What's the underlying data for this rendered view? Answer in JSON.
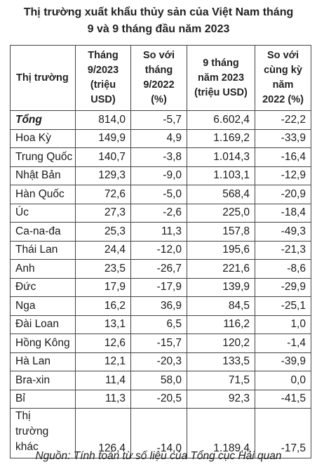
{
  "title": {
    "line1": "Thị trường xuất khẩu thủy sản của Việt Nam tháng",
    "line2": "9 và 9 tháng đầu năm 2023"
  },
  "table": {
    "headers": [
      "Thị trường",
      "Tháng 9/2023 (triệu USD)",
      "So với tháng 9/2022 (%)",
      "9 tháng năm 2023 (triệu USD)",
      "So với cùng kỳ năm 2022 (%)"
    ],
    "rows": [
      {
        "market": "Tổng",
        "sep2023": "814,0",
        "vs_sep2022": "-5,7",
        "nine_months": "6.602,4",
        "vs_same_period": "-22,2"
      },
      {
        "market": "Hoa Kỳ",
        "sep2023": "149,9",
        "vs_sep2022": "4,9",
        "nine_months": "1.169,2",
        "vs_same_period": "-33,9"
      },
      {
        "market": "Trung Quốc",
        "sep2023": "140,7",
        "vs_sep2022": "-3,8",
        "nine_months": "1.014,3",
        "vs_same_period": "-16,4"
      },
      {
        "market": "Nhật Bản",
        "sep2023": "129,3",
        "vs_sep2022": "-9,0",
        "nine_months": "1.103,1",
        "vs_same_period": "-12,9"
      },
      {
        "market": "Hàn Quốc",
        "sep2023": "72,6",
        "vs_sep2022": "-5,0",
        "nine_months": "568,4",
        "vs_same_period": "-20,9"
      },
      {
        "market": "Úc",
        "sep2023": "27,3",
        "vs_sep2022": "-2,6",
        "nine_months": "225,0",
        "vs_same_period": "-18,4"
      },
      {
        "market": "Ca-na-đa",
        "sep2023": "25,3",
        "vs_sep2022": "11,3",
        "nine_months": "157,8",
        "vs_same_period": "-49,3"
      },
      {
        "market": "Thái Lan",
        "sep2023": "24,4",
        "vs_sep2022": "-12,0",
        "nine_months": "195,6",
        "vs_same_period": "-21,3"
      },
      {
        "market": "Anh",
        "sep2023": "23,5",
        "vs_sep2022": "-26,7",
        "nine_months": "221,6",
        "vs_same_period": "-8,6"
      },
      {
        "market": "Đức",
        "sep2023": "17,9",
        "vs_sep2022": "-17,9",
        "nine_months": "139,9",
        "vs_same_period": "-29,9"
      },
      {
        "market": "Nga",
        "sep2023": "16,2",
        "vs_sep2022": "36,9",
        "nine_months": "84,5",
        "vs_same_period": "-25,1"
      },
      {
        "market": "Đài Loan",
        "sep2023": "13,1",
        "vs_sep2022": "6,5",
        "nine_months": "116,2",
        "vs_same_period": "1,0"
      },
      {
        "market": "Hồng Kông",
        "sep2023": "12,6",
        "vs_sep2022": "-15,7",
        "nine_months": "120,2",
        "vs_same_period": "-1,4"
      },
      {
        "market": "Hà Lan",
        "sep2023": "12,1",
        "vs_sep2022": "-20,3",
        "nine_months": "133,5",
        "vs_same_period": "-39,9"
      },
      {
        "market": "Bra-xin",
        "sep2023": "11,4",
        "vs_sep2022": "58,0",
        "nine_months": "71,5",
        "vs_same_period": "0,0"
      },
      {
        "market": "Bỉ",
        "sep2023": "11,3",
        "vs_sep2022": "-20,5",
        "nine_months": "92,3",
        "vs_same_period": "-41,5"
      },
      {
        "market": "Thị trường khác",
        "sep2023": "126,4",
        "vs_sep2022": "-14,0",
        "nine_months": "1.189,4",
        "vs_same_period": "-17,5"
      }
    ]
  },
  "source": "Nguồn: Tính toán từ số liệu của Tổng cục Hải quan"
}
